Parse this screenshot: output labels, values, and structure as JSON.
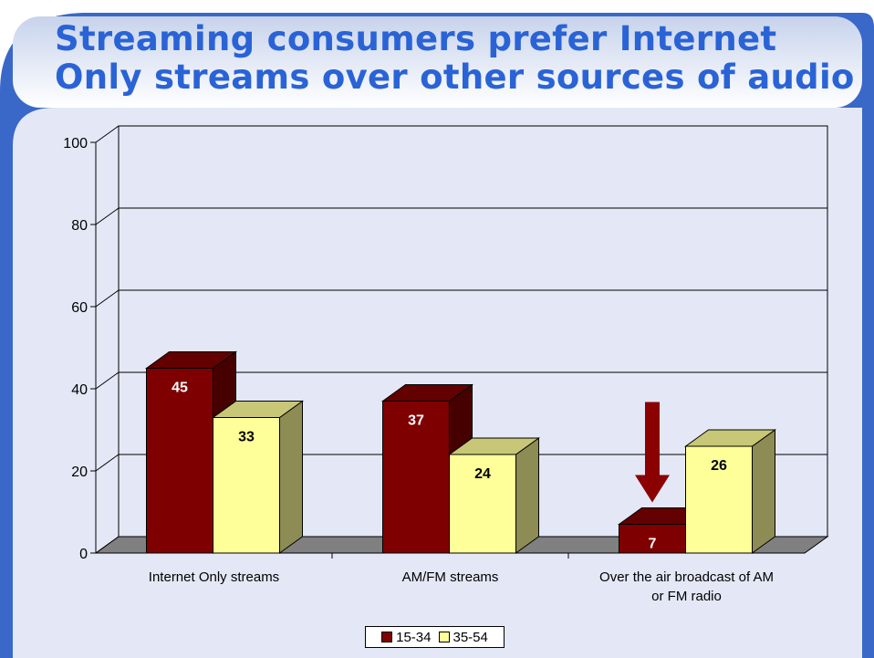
{
  "slide": {
    "title": "Streaming consumers prefer Internet Only streams over other sources of audio"
  },
  "chart_data": {
    "type": "bar",
    "title": "",
    "xlabel": "",
    "ylabel": "",
    "ylim": [
      0,
      100
    ],
    "yticks": [
      0,
      20,
      40,
      60,
      80,
      100
    ],
    "categories": [
      "Internet Only streams",
      "AM/FM streams",
      "Over the air broadcast of AM or FM radio"
    ],
    "series": [
      {
        "name": "15-34",
        "values": [
          45,
          37,
          7
        ],
        "color": "#7f0000"
      },
      {
        "name": "35-54",
        "values": [
          33,
          24,
          26
        ],
        "color": "#ffff99"
      }
    ],
    "grid": true,
    "legend_position": "bottom-center",
    "annotation": {
      "type": "down-arrow",
      "category_index": 2,
      "color": "#8b0000"
    }
  }
}
